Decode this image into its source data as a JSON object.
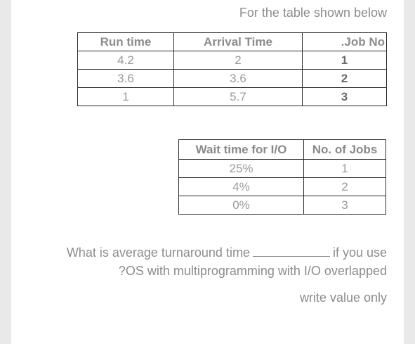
{
  "heading": "For the table shown below",
  "table1": {
    "headers": [
      "Run time",
      "Arrival Time",
      ".Job No"
    ],
    "rows": [
      [
        "4.2",
        "2",
        "1"
      ],
      [
        "3.6",
        "3.6",
        "2"
      ],
      [
        "1",
        "5.7",
        "3"
      ]
    ]
  },
  "table2": {
    "headers": [
      "Wait time for I/O",
      "No. of Jobs"
    ],
    "rows": [
      [
        "25%",
        "1"
      ],
      [
        "4%",
        "2"
      ],
      [
        "0%",
        "3"
      ]
    ]
  },
  "question": {
    "line1_before": "What is average turnaround time",
    "line1_after": "if you use",
    "line2": "?OS with multiprogramming with I/O overlapped"
  },
  "note": "write value only"
}
